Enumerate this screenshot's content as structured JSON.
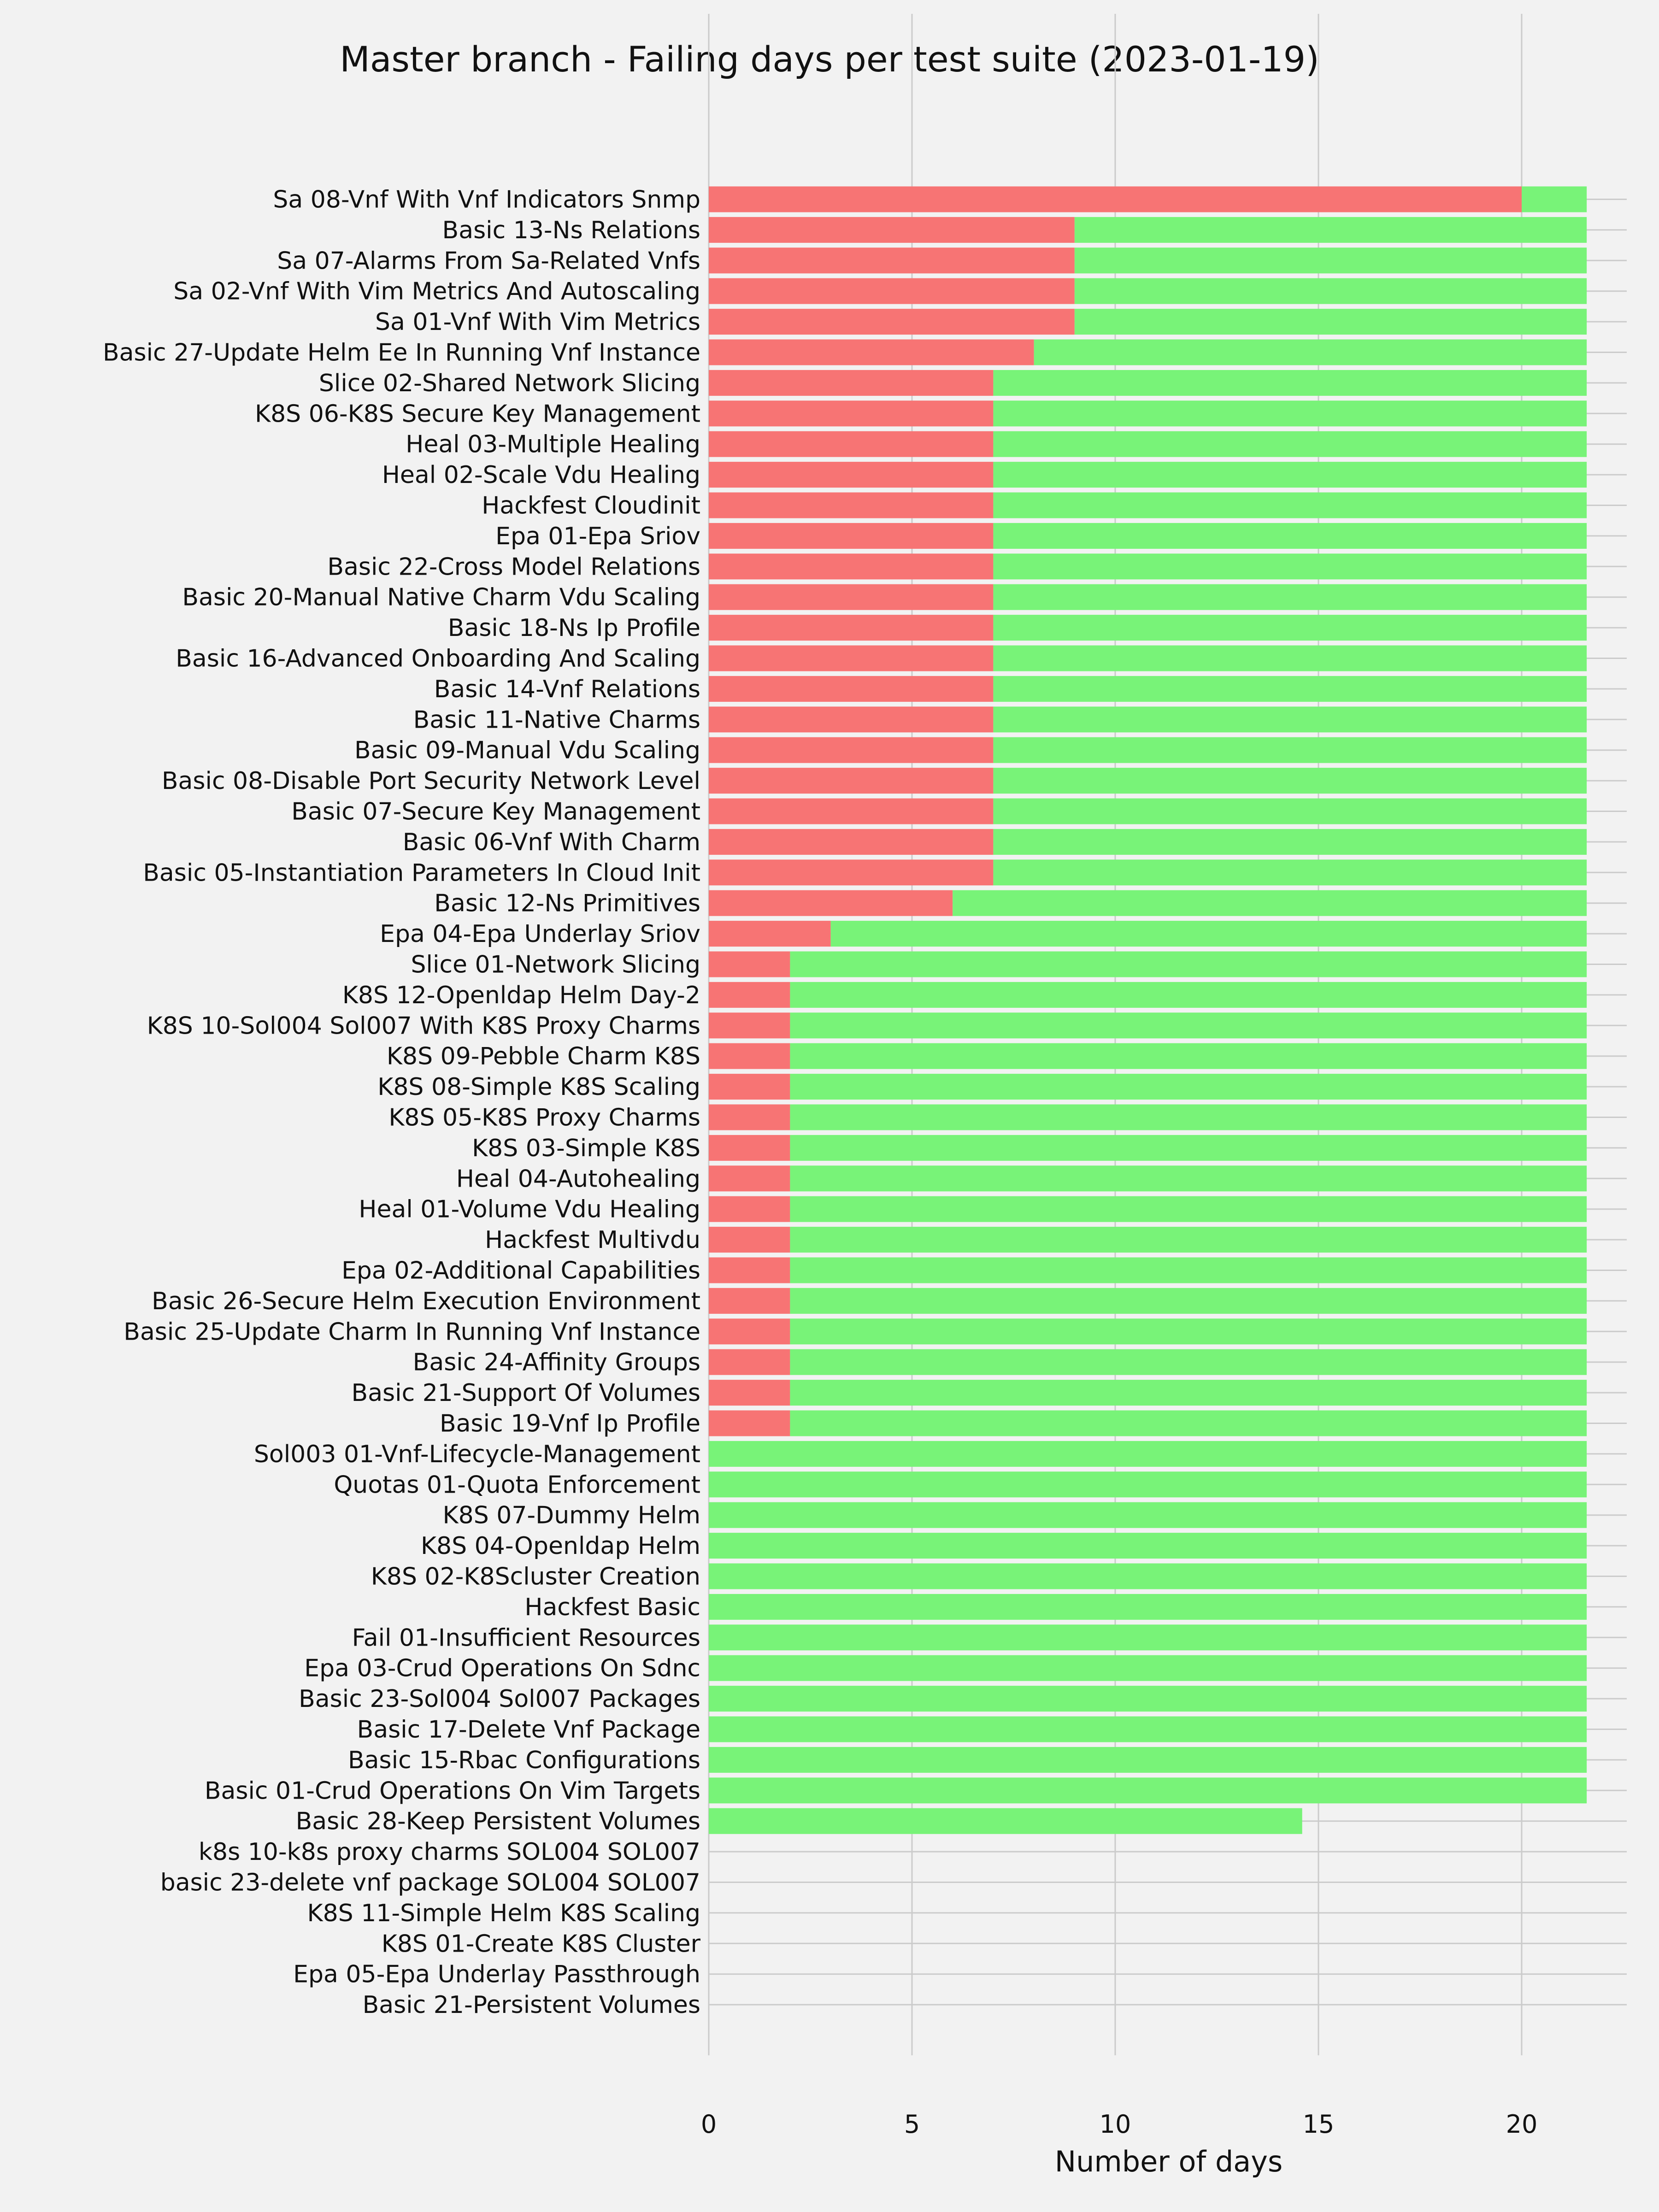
{
  "chart_data": {
    "type": "bar",
    "orientation": "horizontal",
    "stacked": true,
    "title": "Master branch - Failing days per test suite (2023-01-19)",
    "xlabel": "Number of days",
    "ylabel": "",
    "xlim": [
      0,
      22.6
    ],
    "xticks": [
      "0",
      "5",
      "10",
      "15",
      "20"
    ],
    "grid": true,
    "colors": {
      "fail": "#f77474",
      "pass": "#78f378"
    },
    "categories": [
      "Sa 08-Vnf With Vnf Indicators Snmp",
      "Basic 13-Ns Relations",
      "Sa 07-Alarms From Sa-Related Vnfs",
      "Sa 02-Vnf With Vim Metrics And Autoscaling",
      "Sa 01-Vnf With Vim Metrics",
      "Basic 27-Update Helm Ee In Running Vnf Instance",
      "Slice 02-Shared Network Slicing",
      "K8S 06-K8S Secure Key Management",
      "Heal 03-Multiple Healing",
      "Heal 02-Scale Vdu Healing",
      "Hackfest Cloudinit",
      "Epa 01-Epa Sriov",
      "Basic 22-Cross Model Relations",
      "Basic 20-Manual Native Charm Vdu Scaling",
      "Basic 18-Ns Ip Profile",
      "Basic 16-Advanced Onboarding And Scaling",
      "Basic 14-Vnf Relations",
      "Basic 11-Native Charms",
      "Basic 09-Manual Vdu Scaling",
      "Basic 08-Disable Port Security Network Level",
      "Basic 07-Secure Key Management",
      "Basic 06-Vnf With Charm",
      "Basic 05-Instantiation Parameters In Cloud Init",
      "Basic 12-Ns Primitives",
      "Epa 04-Epa Underlay Sriov",
      "Slice 01-Network Slicing",
      "K8S 12-Openldap Helm Day-2",
      "K8S 10-Sol004 Sol007 With K8S Proxy Charms",
      "K8S 09-Pebble Charm K8S",
      "K8S 08-Simple K8S Scaling",
      "K8S 05-K8S Proxy Charms",
      "K8S 03-Simple K8S",
      "Heal 04-Autohealing",
      "Heal 01-Volume Vdu Healing",
      "Hackfest Multivdu",
      "Epa 02-Additional Capabilities",
      "Basic 26-Secure Helm Execution Environment",
      "Basic 25-Update Charm In Running Vnf Instance",
      "Basic 24-Affinity Groups",
      "Basic 21-Support Of Volumes",
      "Basic 19-Vnf Ip Profile",
      "Sol003 01-Vnf-Lifecycle-Management",
      "Quotas 01-Quota Enforcement",
      "K8S 07-Dummy Helm",
      "K8S 04-Openldap Helm",
      "K8S 02-K8Scluster Creation",
      "Hackfest Basic",
      "Fail 01-Insufficient Resources",
      "Epa 03-Crud Operations On Sdnc",
      "Basic 23-Sol004 Sol007 Packages",
      "Basic 17-Delete Vnf Package",
      "Basic 15-Rbac Configurations",
      "Basic 01-Crud Operations On Vim Targets",
      "Basic 28-Keep Persistent Volumes",
      "k8s 10-k8s proxy charms SOL004 SOL007",
      "basic 23-delete vnf package SOL004 SOL007",
      "K8S 11-Simple Helm K8S Scaling",
      "K8S 01-Create K8S Cluster",
      "Epa 05-Epa Underlay Passthrough",
      "Basic 21-Persistent Volumes"
    ],
    "series": [
      {
        "key": "fail",
        "values": [
          20,
          9,
          9,
          9,
          9,
          8,
          7,
          7,
          7,
          7,
          7,
          7,
          7,
          7,
          7,
          7,
          7,
          7,
          7,
          7,
          7,
          7,
          7,
          6,
          3,
          2,
          2,
          2,
          2,
          2,
          2,
          2,
          2,
          2,
          2,
          2,
          2,
          2,
          2,
          2,
          2,
          0,
          0,
          0,
          0,
          0,
          0,
          0,
          0,
          0,
          0,
          0,
          0,
          0,
          0,
          0,
          0,
          0,
          0,
          0
        ]
      },
      {
        "key": "pass",
        "values": [
          1.6,
          12.6,
          12.6,
          12.6,
          12.6,
          13.6,
          14.6,
          14.6,
          14.6,
          14.6,
          14.6,
          14.6,
          14.6,
          14.6,
          14.6,
          14.6,
          14.6,
          14.6,
          14.6,
          14.6,
          14.6,
          14.6,
          14.6,
          15.6,
          18.6,
          19.6,
          19.6,
          19.6,
          19.6,
          19.6,
          19.6,
          19.6,
          19.6,
          19.6,
          19.6,
          19.6,
          19.6,
          19.6,
          19.6,
          19.6,
          19.6,
          21.6,
          21.6,
          21.6,
          21.6,
          21.6,
          21.6,
          21.6,
          21.6,
          21.6,
          21.6,
          21.6,
          21.6,
          14.6,
          0,
          0,
          0,
          0,
          0,
          0
        ]
      }
    ]
  }
}
